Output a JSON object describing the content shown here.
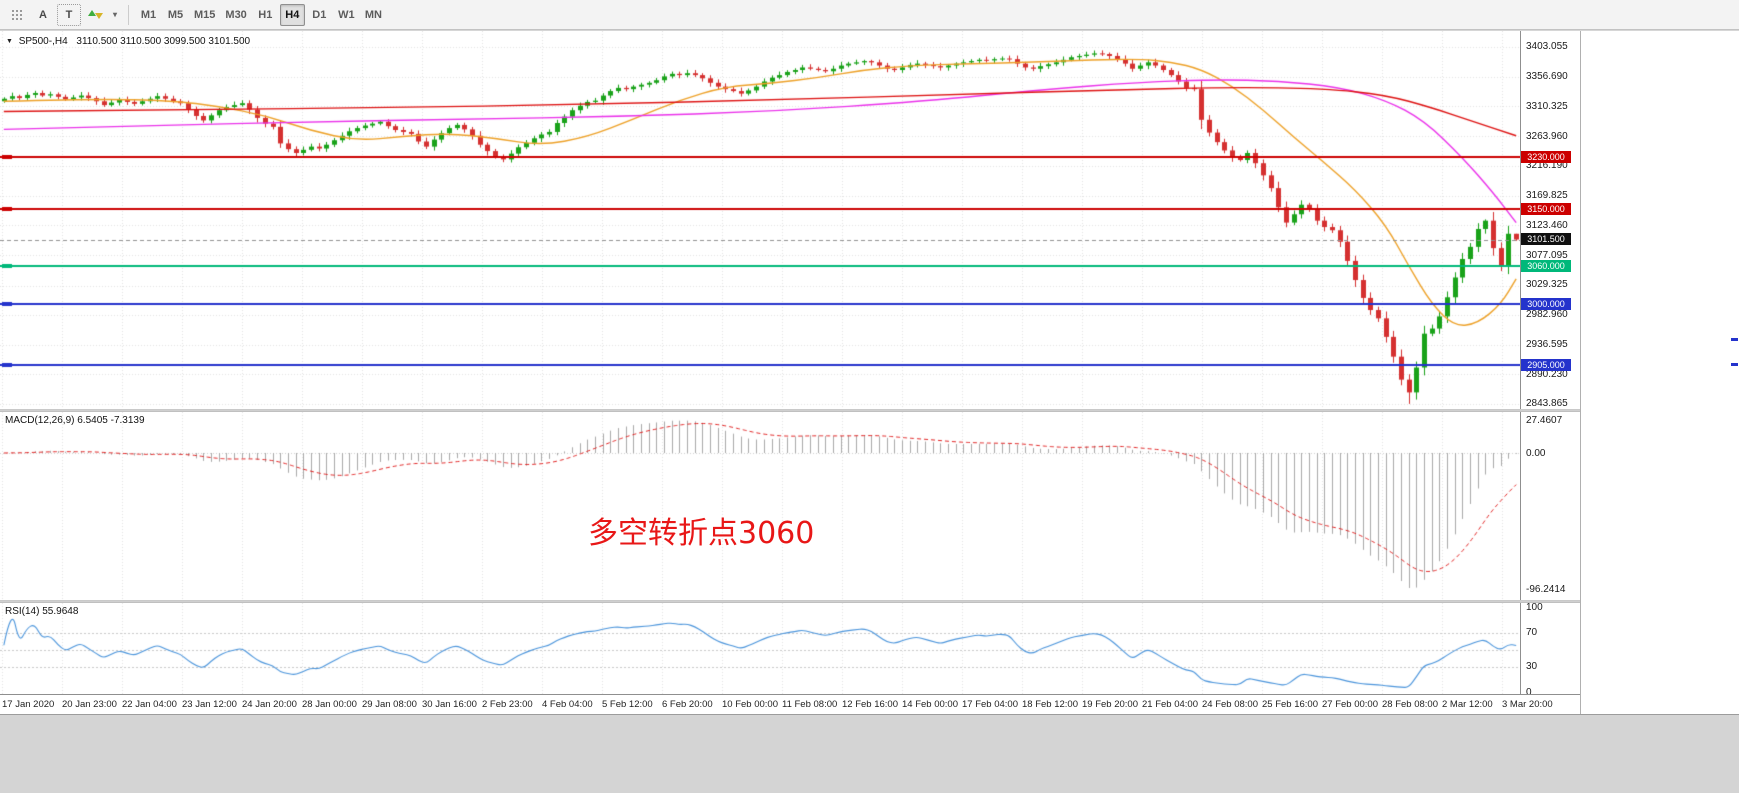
{
  "toolbar": {
    "tool_a_label": "A",
    "tool_t_label": "T",
    "timeframes": [
      {
        "label": "M1",
        "active": false
      },
      {
        "label": "M5",
        "active": false
      },
      {
        "label": "M15",
        "active": false
      },
      {
        "label": "M30",
        "active": false
      },
      {
        "label": "H1",
        "active": false
      },
      {
        "label": "H4",
        "active": true
      },
      {
        "label": "D1",
        "active": false
      },
      {
        "label": "W1",
        "active": false
      },
      {
        "label": "MN",
        "active": false
      }
    ]
  },
  "chart": {
    "header": {
      "symbol": "SP500-,H4",
      "ohlc": "3110.500 3110.500 3099.500 3101.500"
    },
    "price_axis": [
      "3403.055",
      "3356.690",
      "3310.325",
      "3263.960",
      "3216.190",
      "3169.825",
      "3123.460",
      "3077.095",
      "3029.325",
      "2982.960",
      "2936.595",
      "2890.230",
      "2843.865"
    ],
    "time_axis": [
      "17 Jan 2020",
      "20 Jan 23:00",
      "22 Jan 04:00",
      "23 Jan 12:00",
      "24 Jan 20:00",
      "28 Jan 00:00",
      "29 Jan 08:00",
      "30 Jan 16:00",
      "2 Feb 23:00",
      "4 Feb 04:00",
      "5 Feb 12:00",
      "6 Feb 20:00",
      "10 Feb 00:00",
      "11 Feb 08:00",
      "12 Feb 16:00",
      "14 Feb 00:00",
      "17 Feb 04:00",
      "18 Feb 12:00",
      "19 Feb 20:00",
      "21 Feb 04:00",
      "24 Feb 08:00",
      "25 Feb 16:00",
      "27 Feb 00:00",
      "28 Feb 08:00",
      "2 Mar 12:00",
      "3 Mar 20:00"
    ],
    "current_price_tag": "3101.500"
  },
  "macd_panel": {
    "header": "MACD(12,26,9) 6.5405 -7.3139",
    "axis": [
      "27.4607",
      "0.00",
      "-96.2414"
    ]
  },
  "rsi_panel": {
    "header": "RSI(14) 55.9648",
    "axis": [
      "100",
      "70",
      "30",
      "0"
    ]
  },
  "chart_data": {
    "type": "candlestick",
    "title": "SP500-,H4",
    "symbol": "SP500-",
    "timeframe": "H4",
    "current_bar": {
      "open": 3110.5,
      "high": 3110.5,
      "low": 3099.5,
      "close": 3101.5
    },
    "y_range": [
      2843.865,
      3403.055
    ],
    "x_labels": [
      "17 Jan 2020",
      "20 Jan 23:00",
      "22 Jan 04:00",
      "23 Jan 12:00",
      "24 Jan 20:00",
      "28 Jan 00:00",
      "29 Jan 08:00",
      "30 Jan 16:00",
      "2 Feb 23:00",
      "4 Feb 04:00",
      "5 Feb 12:00",
      "6 Feb 20:00",
      "10 Feb 00:00",
      "11 Feb 08:00",
      "12 Feb 16:00",
      "14 Feb 00:00",
      "17 Feb 04:00",
      "18 Feb 12:00",
      "19 Feb 20:00",
      "21 Feb 04:00",
      "24 Feb 08:00",
      "25 Feb 16:00",
      "27 Feb 00:00",
      "28 Feb 08:00",
      "2 Mar 12:00",
      "3 Mar 20:00"
    ],
    "first_open": 3318,
    "closes": [
      3322,
      3326,
      3323,
      3328,
      3331,
      3327,
      3329,
      3325,
      3321,
      3324,
      3327,
      3323,
      3318,
      3312,
      3316,
      3320,
      3317,
      3314,
      3318,
      3322,
      3326,
      3322,
      3318,
      3315,
      3305,
      3295,
      3288,
      3296,
      3304,
      3309,
      3312,
      3315,
      3305,
      3292,
      3283,
      3278,
      3252,
      3243,
      3237,
      3242,
      3247,
      3244,
      3250,
      3257,
      3264,
      3271,
      3276,
      3280,
      3283,
      3286,
      3279,
      3273,
      3270,
      3267,
      3255,
      3247,
      3258,
      3268,
      3276,
      3281,
      3274,
      3264,
      3250,
      3240,
      3232,
      3227,
      3236,
      3246,
      3253,
      3260,
      3266,
      3270,
      3284,
      3294,
      3304,
      3311,
      3317,
      3319,
      3327,
      3334,
      3339,
      3337,
      3341,
      3344,
      3347,
      3351,
      3357,
      3361,
      3359,
      3362,
      3359,
      3354,
      3347,
      3341,
      3337,
      3334,
      3330,
      3335,
      3341,
      3349,
      3355,
      3359,
      3364,
      3367,
      3371,
      3369,
      3367,
      3365,
      3369,
      3374,
      3377,
      3379,
      3381,
      3379,
      3374,
      3369,
      3367,
      3371,
      3375,
      3377,
      3375,
      3373,
      3371,
      3374,
      3377,
      3379,
      3381,
      3383,
      3382,
      3384,
      3385,
      3384,
      3377,
      3371,
      3369,
      3373,
      3376,
      3379,
      3383,
      3387,
      3389,
      3391,
      3393,
      3392,
      3389,
      3384,
      3377,
      3369,
      3374,
      3379,
      3374,
      3367,
      3359,
      3349,
      3339,
      3337,
      3289,
      3269,
      3254,
      3241,
      3230,
      3226,
      3237,
      3221,
      3202,
      3182,
      3152,
      3128,
      3141,
      3156,
      3149,
      3131,
      3121,
      3116,
      3098,
      3068,
      3038,
      3010,
      2991,
      2978,
      2949,
      2918,
      2882,
      2862,
      2901,
      2954,
      2962,
      2981,
      3011,
      3042,
      3071,
      3090,
      3118,
      3131,
      3088,
      3061,
      3110.5,
      3101.5
    ],
    "low_overrides": {
      "183": 2844,
      "197": 3099.5
    },
    "high_overrides": {
      "193": 3133,
      "197": 3110.5
    },
    "horizontal_lines": [
      {
        "price": 3230,
        "label": "3230.000",
        "color": "#cc0000"
      },
      {
        "price": 3150,
        "label": "3150.000",
        "color": "#cc0000"
      },
      {
        "price": 3060,
        "label": "3060.000",
        "color": "#00b87a"
      },
      {
        "price": 3000,
        "label": "3000.000",
        "color": "#2433cc"
      },
      {
        "price": 2905,
        "label": "2905.000",
        "color": "#2433cc"
      }
    ],
    "ma_lines": [
      {
        "name": "fast-ma",
        "color": "#eda128",
        "points": [
          [
            0,
            3318
          ],
          [
            12,
            3322
          ],
          [
            22,
            3319
          ],
          [
            28,
            3310
          ],
          [
            34,
            3296
          ],
          [
            40,
            3272
          ],
          [
            46,
            3256
          ],
          [
            52,
            3263
          ],
          [
            58,
            3268
          ],
          [
            64,
            3260
          ],
          [
            70,
            3249
          ],
          [
            76,
            3262
          ],
          [
            82,
            3290
          ],
          [
            88,
            3320
          ],
          [
            94,
            3341
          ],
          [
            100,
            3346
          ],
          [
            106,
            3355
          ],
          [
            112,
            3367
          ],
          [
            118,
            3374
          ],
          [
            126,
            3377
          ],
          [
            134,
            3379
          ],
          [
            142,
            3383
          ],
          [
            148,
            3384
          ],
          [
            152,
            3380
          ],
          [
            156,
            3368
          ],
          [
            160,
            3342
          ],
          [
            164,
            3305
          ],
          [
            168,
            3262
          ],
          [
            172,
            3222
          ],
          [
            176,
            3180
          ],
          [
            180,
            3125
          ],
          [
            183,
            3060
          ],
          [
            186,
            3000
          ],
          [
            189,
            2965
          ],
          [
            192,
            2970
          ],
          [
            195,
            3000
          ],
          [
            197,
            3040
          ]
        ]
      },
      {
        "name": "mid-ma",
        "color": "#ea30ea",
        "points": [
          [
            0,
            3274
          ],
          [
            20,
            3280
          ],
          [
            40,
            3286
          ],
          [
            60,
            3290
          ],
          [
            80,
            3294
          ],
          [
            100,
            3302
          ],
          [
            120,
            3318
          ],
          [
            135,
            3336
          ],
          [
            148,
            3348
          ],
          [
            158,
            3352
          ],
          [
            166,
            3350
          ],
          [
            174,
            3340
          ],
          [
            180,
            3320
          ],
          [
            185,
            3288
          ],
          [
            190,
            3230
          ],
          [
            194,
            3175
          ],
          [
            197,
            3128
          ]
        ]
      },
      {
        "name": "slow-ma",
        "color": "#dd1111",
        "points": [
          [
            0,
            3302
          ],
          [
            25,
            3305
          ],
          [
            50,
            3308
          ],
          [
            75,
            3313
          ],
          [
            100,
            3320
          ],
          [
            125,
            3329
          ],
          [
            145,
            3336
          ],
          [
            160,
            3340
          ],
          [
            172,
            3338
          ],
          [
            180,
            3328
          ],
          [
            186,
            3308
          ],
          [
            191,
            3288
          ],
          [
            197,
            3264
          ]
        ]
      }
    ],
    "indicators": {
      "macd": {
        "params": [
          12,
          26,
          9
        ],
        "main_value": 6.5405,
        "signal_value": -7.3139,
        "axis_max": 27.4607,
        "axis_min": -96.2414,
        "histogram_color": "#a8a8a8",
        "signal_color": "#e02020"
      },
      "rsi": {
        "period": 14,
        "value": 55.9648,
        "levels": [
          30,
          50,
          70
        ],
        "color": "#4a94db"
      }
    },
    "annotation": {
      "text": "多空转折点3060",
      "color": "#e81717"
    },
    "colors": {
      "bull": "#19a219",
      "bear": "#d53030",
      "grid": "#e3e3e3",
      "current_price_line": "#909090"
    }
  }
}
